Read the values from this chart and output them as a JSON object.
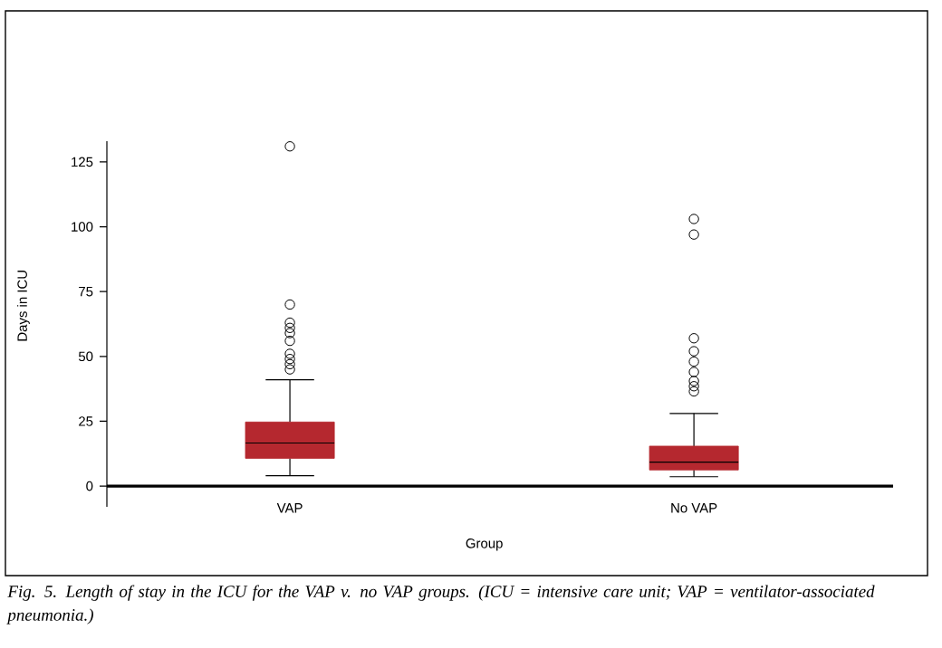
{
  "chart_data": {
    "type": "box",
    "categories": [
      "VAP",
      "No VAP"
    ],
    "color": "#b5282f",
    "boxes": [
      {
        "low": 4,
        "q1": 10.7,
        "median": 16.6,
        "q3": 24.7,
        "high": 41,
        "outliers": [
          131,
          70,
          63,
          61,
          59,
          56,
          51,
          49,
          47,
          45
        ]
      },
      {
        "low": 3.6,
        "q1": 6.2,
        "median": 9.2,
        "q3": 15.4,
        "high": 28,
        "outliers": [
          103,
          97,
          57,
          52,
          48,
          44,
          40.5,
          38.5,
          36.5
        ]
      }
    ],
    "xlabel": "Group",
    "ylabel": "Days in ICU",
    "ylim": [
      -8,
      133
    ],
    "yticks": [
      0,
      25,
      50,
      75,
      100,
      125
    ],
    "annotations": [
      "Fig. 5. Length of stay in the ICU for the VAP v. no VAP groups. (ICU = intensive care unit; VAP = ventilator-associated pneumonia.)"
    ]
  }
}
